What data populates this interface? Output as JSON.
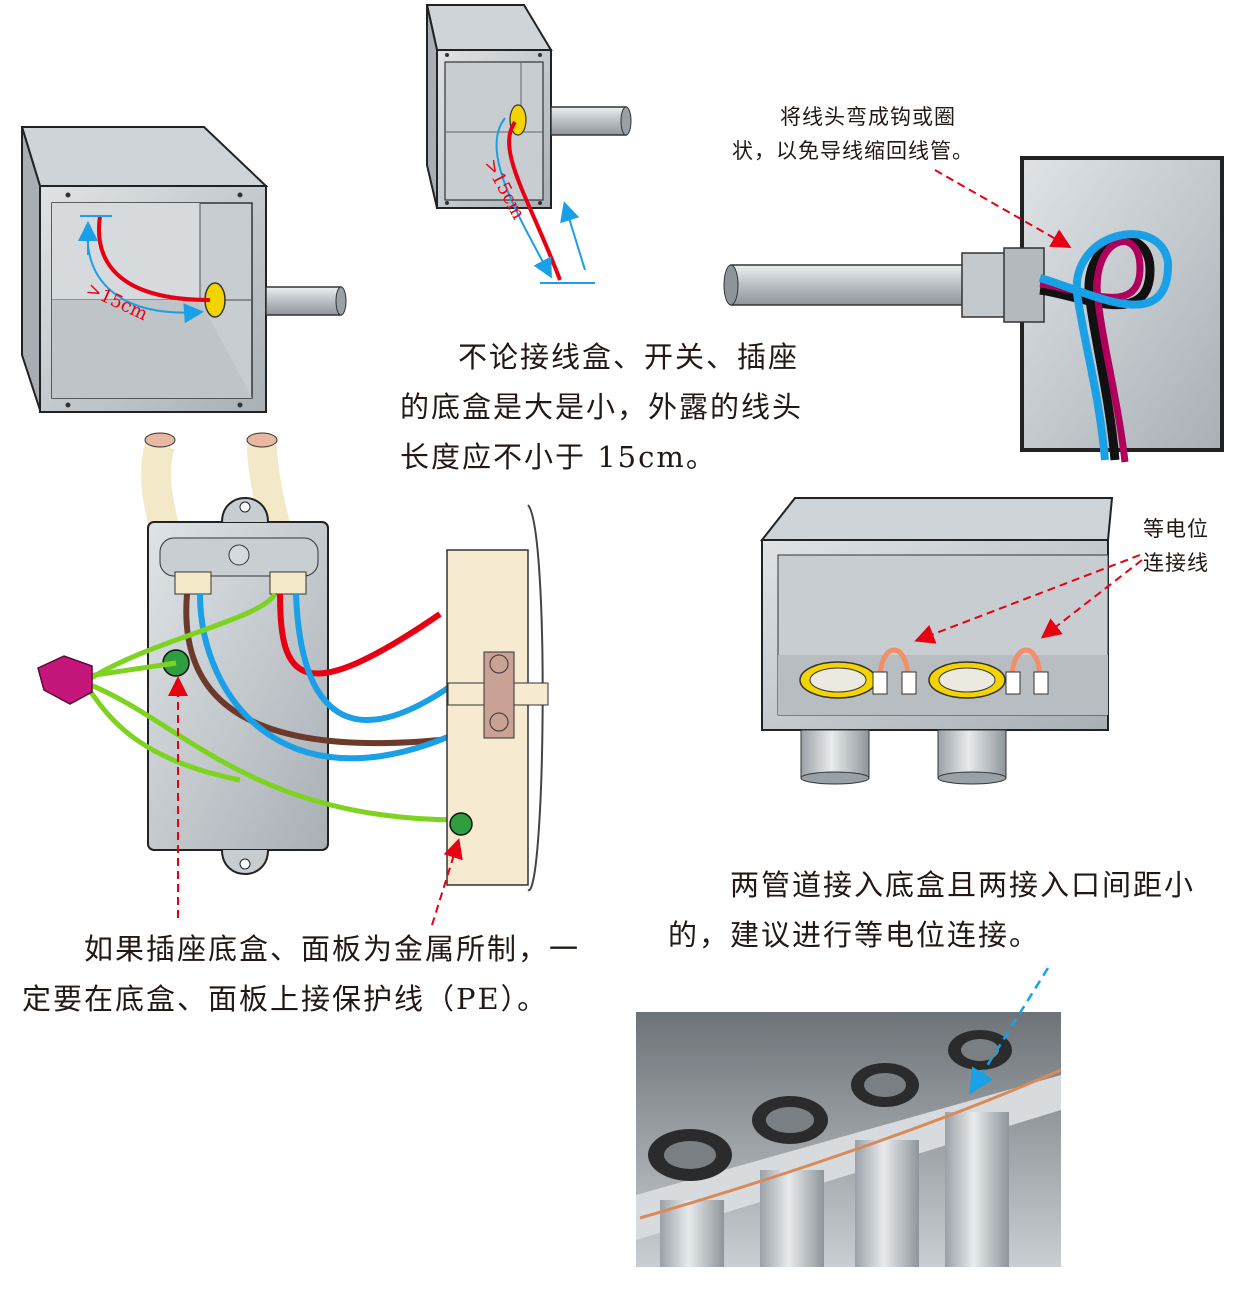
{
  "figure": {
    "dimension_label": ">15cm",
    "length_caption": {
      "line1": "不论接线盒、开关、插座",
      "line2": "的底盒是大是小，外露的线头",
      "line3": "长度应不小于 15cm。"
    },
    "hook_note": {
      "line1": "将线头弯成钩或圈",
      "line2": "状，以免导线缩回线管。"
    },
    "bonding_note": {
      "line1": "等电位",
      "line2": "连接线"
    },
    "metal_caption": {
      "line1": "如果插座底盒、面板为金属所制，一",
      "line2": "定要在底盒、面板上接保护线（PE）。"
    },
    "pipe_caption": {
      "line1": "两管道接入底盒且两接入口间距小",
      "line2": "的，建议进行等电位连接。"
    }
  },
  "colors": {
    "line_wire": "#e60012",
    "neutral_wire": "#1aa0e6",
    "earth_wire": "#7ed321",
    "arrow_red": "#e60012",
    "arrow_blue": "#1aa0e6"
  }
}
